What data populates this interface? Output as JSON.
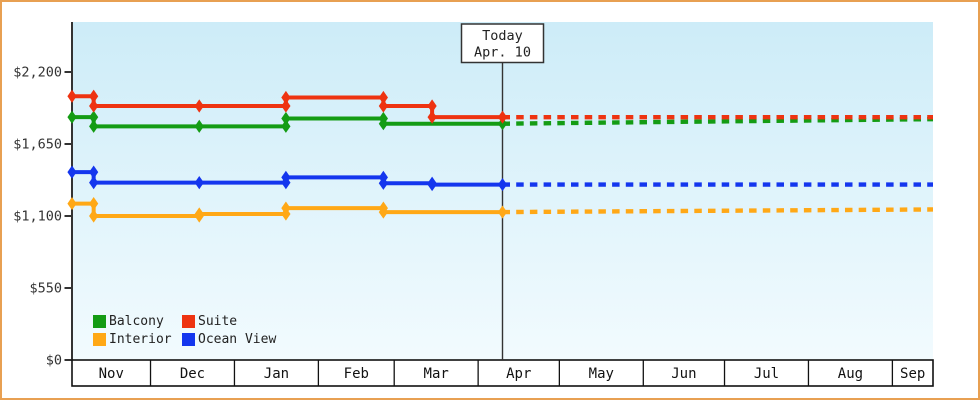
{
  "colors": {
    "frame_border": "#e8a052",
    "axis": "#333333",
    "table_border": "#111111",
    "today_line": "#333333",
    "label_text": "#333333"
  },
  "legend": [
    {
      "label": "Balcony",
      "color": "#149c14"
    },
    {
      "label": "Suite",
      "color": "#ee3311"
    },
    {
      "label": "Interior",
      "color": "#ffa816"
    },
    {
      "label": "Ocean View",
      "color": "#1436ee"
    }
  ],
  "today": {
    "line1": "Today",
    "line2": "Apr. 10",
    "day": 159
  },
  "chart_data": {
    "type": "line",
    "title": "",
    "style": "stepped price history with dashed forecast after today",
    "grid": false,
    "legend_position": "bottom-left-inside",
    "plot_background": {
      "top": "#cdecf8",
      "bottom": "#f2fbfe"
    },
    "x_axis": {
      "months": [
        "Nov",
        "Dec",
        "Jan",
        "Feb",
        "Mar",
        "Apr",
        "May",
        "Jun",
        "Jul",
        "Aug",
        "Sep"
      ],
      "month_start_days": [
        0,
        29,
        60,
        91,
        119,
        150,
        180,
        211,
        241,
        272,
        303
      ],
      "total_days": 318
    },
    "y_axis": {
      "tick_values": [
        0,
        550,
        1100,
        1650,
        2200
      ],
      "tick_labels": [
        "$0",
        "$550",
        "$1,100",
        "$1,650",
        "$2,200"
      ],
      "range": [
        0,
        2590
      ]
    },
    "series": [
      {
        "name": "Interior",
        "color": "#ffa816",
        "points": [
          [
            0,
            1195
          ],
          [
            8,
            1100
          ],
          [
            47,
            1115
          ],
          [
            79,
            1160
          ],
          [
            115,
            1130
          ],
          [
            159,
            1130
          ]
        ],
        "forecast_end": [
          318,
          1150
        ]
      },
      {
        "name": "Ocean View",
        "color": "#1436ee",
        "points": [
          [
            0,
            1435
          ],
          [
            8,
            1355
          ],
          [
            47,
            1355
          ],
          [
            79,
            1395
          ],
          [
            115,
            1350
          ],
          [
            133,
            1340
          ],
          [
            159,
            1340
          ]
        ],
        "forecast_end": [
          318,
          1340
        ]
      },
      {
        "name": "Balcony",
        "color": "#149c14",
        "points": [
          [
            0,
            1855
          ],
          [
            8,
            1785
          ],
          [
            47,
            1785
          ],
          [
            79,
            1845
          ],
          [
            115,
            1805
          ],
          [
            159,
            1805
          ]
        ],
        "forecast_end": [
          318,
          1840
        ]
      },
      {
        "name": "Suite",
        "color": "#ee3311",
        "points": [
          [
            0,
            2015
          ],
          [
            8,
            1940
          ],
          [
            47,
            1940
          ],
          [
            79,
            2005
          ],
          [
            115,
            1940
          ],
          [
            133,
            1855
          ],
          [
            159,
            1855
          ]
        ],
        "forecast_end": [
          318,
          1855
        ]
      }
    ]
  }
}
